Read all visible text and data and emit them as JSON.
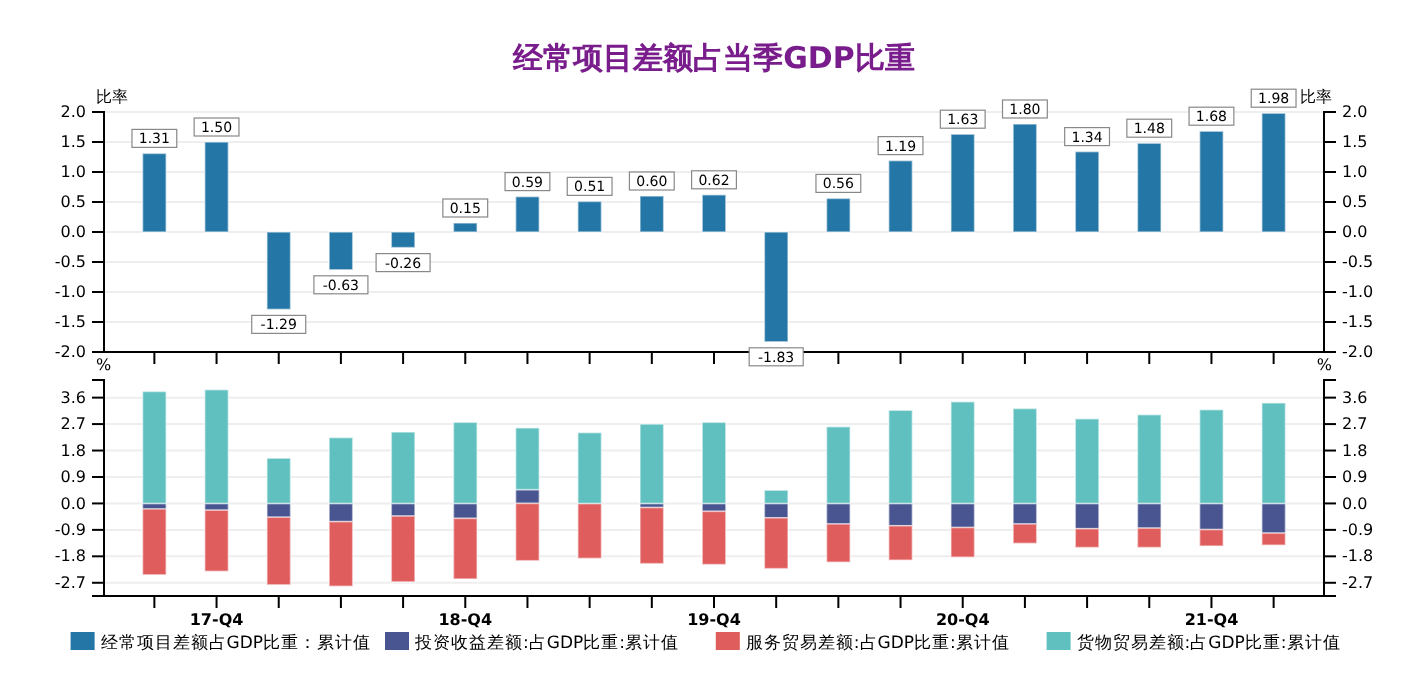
{
  "chart_data": [
    {
      "type": "bar",
      "title": "经常项目差额占当季GDP比重",
      "ylabel": "比率",
      "y2label": "比率",
      "categories": [
        null,
        null,
        null,
        null,
        null,
        null,
        null,
        null,
        null,
        null,
        null,
        null,
        null,
        null,
        null,
        null,
        null,
        null,
        null
      ],
      "series": [
        {
          "name": "经常项目差额占GDP比重：累计值",
          "color": "#2376a6",
          "values": [
            1.31,
            1.5,
            -1.29,
            -0.63,
            -0.26,
            0.15,
            0.59,
            0.51,
            0.6,
            0.62,
            -1.83,
            0.56,
            1.19,
            1.63,
            1.8,
            1.34,
            1.48,
            1.68,
            1.98
          ],
          "value_labels": [
            "1.31",
            "1.50",
            "-1.29",
            "-0.63",
            "-0.26",
            "0.15",
            "0.59",
            "0.51",
            "0.60",
            "0.62",
            "-1.83",
            "0.56",
            "1.19",
            "1.63",
            "1.80",
            "1.34",
            "1.48",
            "1.68",
            "1.98"
          ]
        }
      ],
      "ylim": [
        -2,
        2
      ],
      "yticks": [
        {
          "value": -2,
          "label": "-2.0"
        },
        {
          "value": -1.5,
          "label": "-1.5"
        },
        {
          "value": -1,
          "label": "-1.0"
        },
        {
          "value": -0.5,
          "label": "-0.5"
        },
        {
          "value": 0,
          "label": "0.0"
        },
        {
          "value": 0.5,
          "label": "0.5"
        },
        {
          "value": 1,
          "label": "1.0"
        },
        {
          "value": 1.5,
          "label": "1.5"
        },
        {
          "value": 2,
          "label": "2.0"
        }
      ],
      "y2lim": [
        -2,
        2
      ],
      "y2ticks": [
        {
          "value": -2,
          "label": "-2.0"
        },
        {
          "value": -1.5,
          "label": "-1.5"
        },
        {
          "value": -1,
          "label": "-1.0"
        },
        {
          "value": -0.5,
          "label": "-0.5"
        },
        {
          "value": 0,
          "label": "0.0"
        },
        {
          "value": 0.5,
          "label": "0.5"
        },
        {
          "value": 1,
          "label": "1.0"
        },
        {
          "value": 1.5,
          "label": "1.5"
        },
        {
          "value": 2,
          "label": "2.0"
        }
      ],
      "grid": "y",
      "legend": "bottom",
      "tick_labels": "y"
    },
    {
      "type": "bar",
      "stacked": true,
      "ylabel": "%",
      "y2label": "%",
      "categories": [
        null,
        "17-Q4",
        null,
        null,
        null,
        "18-Q4",
        null,
        null,
        null,
        "19-Q4",
        null,
        null,
        null,
        "20-Q4",
        null,
        null,
        null,
        "21-Q4",
        null
      ],
      "series": [
        {
          "name": "投资收益差额:占GDP比重:累计值",
          "color": "#485590",
          "values": [
            -0.19,
            -0.23,
            -0.47,
            -0.62,
            -0.43,
            -0.51,
            0.47,
            0,
            -0.14,
            -0.27,
            -0.49,
            -0.7,
            -0.76,
            -0.82,
            -0.7,
            -0.86,
            -0.84,
            -0.89,
            -1.01
          ]
        },
        {
          "name": "服务贸易差额:占GDP比重:累计值",
          "color": "#e05d5d",
          "values": [
            -2.24,
            -2.08,
            -2.3,
            -2.2,
            -2.24,
            -2.06,
            -1.95,
            -1.87,
            -1.91,
            -1.81,
            -1.73,
            -1.3,
            -1.17,
            -1.01,
            -0.66,
            -0.64,
            -0.66,
            -0.56,
            -0.41
          ]
        },
        {
          "name": "货物贸易差额:占GDP比重:累计值",
          "color": "#60bfbf",
          "values": [
            3.81,
            3.87,
            1.54,
            2.24,
            2.43,
            2.76,
            2.1,
            2.41,
            2.7,
            2.76,
            0.45,
            2.61,
            3.17,
            3.46,
            3.23,
            2.88,
            3.02,
            3.19,
            3.42
          ]
        }
      ],
      "ylim": [
        -3.15,
        4.2
      ],
      "yticks": [
        -2.7,
        -1.8,
        -0.9,
        {
          "value": 0,
          "label": "0.0"
        },
        0.9,
        1.8,
        2.7,
        3.6
      ],
      "y2lim": [
        -3.15,
        4.2
      ],
      "y2ticks": [
        -2.7,
        -1.8,
        -0.9,
        {
          "value": 0,
          "label": "0.0"
        },
        0.9,
        1.8,
        2.7,
        3.6
      ],
      "grid": "y",
      "legend": "bottom"
    }
  ]
}
